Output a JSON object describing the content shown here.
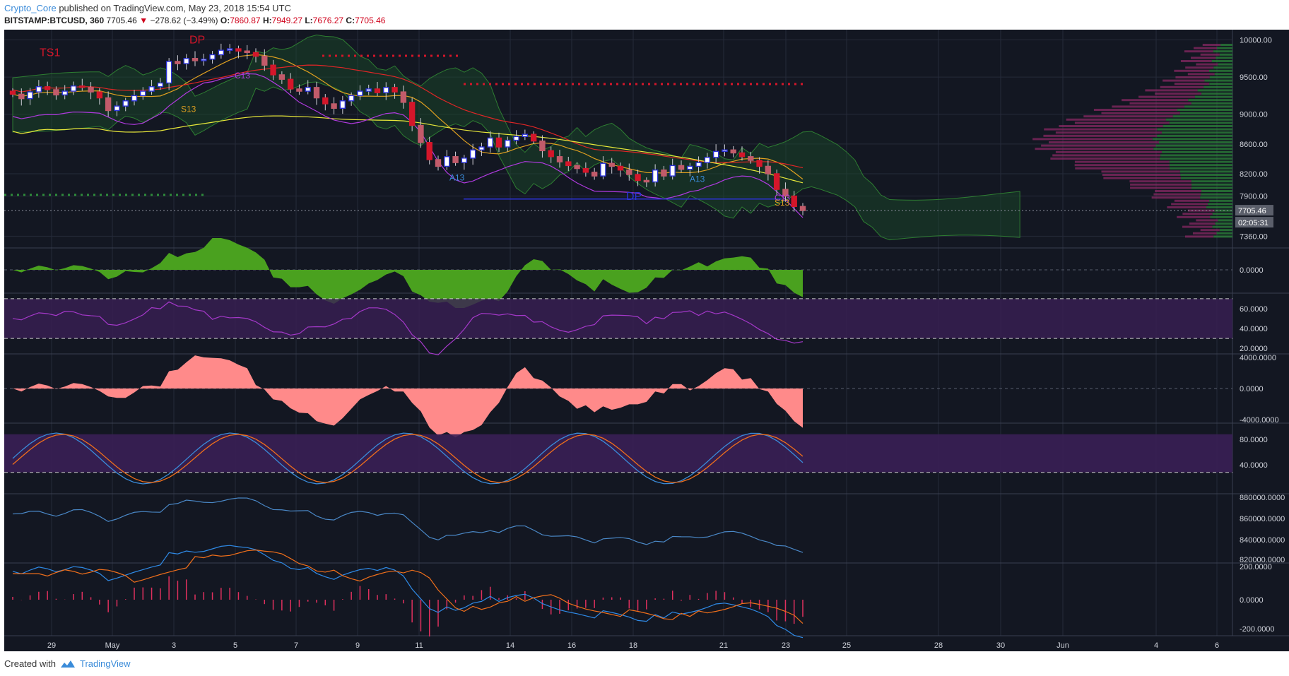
{
  "header": {
    "author": "Crypto_Core",
    "published_text": "published on TradingView.com, May 23, 2018 15:54 UTC"
  },
  "symbol_line": {
    "symbol": "BITSTAMP:BTCUSD, 360",
    "last": "7705.46",
    "change_arrow": "▼",
    "change": "−278.62 (−3.49%)",
    "o_label": "O:",
    "o": "7860.87",
    "h_label": "H:",
    "h": "7949.27",
    "l_label": "L:",
    "l": "7676.27",
    "c_label": "C:",
    "c": "7705.46"
  },
  "footer": {
    "created_with": "Created with",
    "brand": "TradingView"
  },
  "colors": {
    "bg": "#131722",
    "grid": "#262b3a",
    "up": "#2c33d8",
    "down": "#d4162a",
    "cloud_up": "#1b4d2b",
    "cloud_down": "#4a1f2b",
    "axis_text": "#d1d4dc",
    "ao": "#4aa11f",
    "rsi": "#a438c9",
    "cci_fill": "#ff8a8a",
    "stoch_k": "#3a8bd9",
    "stoch_d": "#f06f1b",
    "obv": "#4a88c7",
    "macd": "#2f8ae6",
    "signal": "#f06f1b",
    "hist": "#e0305e"
  },
  "chart_data": {
    "type": "candlestick",
    "price_axis": {
      "ticks": [
        "10000.00",
        "9500.00",
        "9000.00",
        "8600.00",
        "8200.00",
        "7900.00",
        "7360.00"
      ],
      "last_price": "7705.46",
      "countdown": "02:05:31",
      "range": [
        7250,
        10080
      ]
    },
    "x_axis": {
      "ticks": [
        "29",
        "May",
        "3",
        "5",
        "7",
        "9",
        "11",
        "14",
        "16",
        "18",
        "21",
        "23",
        "25",
        "28",
        "30",
        "Jun",
        "4",
        "6"
      ]
    },
    "price_series": [
      9270,
      9210,
      9300,
      9370,
      9330,
      9260,
      9310,
      9380,
      9360,
      9300,
      9220,
      9050,
      9110,
      9180,
      9250,
      9310,
      9370,
      9420,
      9710,
      9680,
      9750,
      9720,
      9740,
      9800,
      9860,
      9880,
      9850,
      9830,
      9780,
      9660,
      9530,
      9470,
      9340,
      9310,
      9360,
      9220,
      9140,
      9080,
      9180,
      9250,
      9310,
      9340,
      9290,
      9360,
      9300,
      9160,
      8850,
      8620,
      8390,
      8300,
      8430,
      8350,
      8410,
      8520,
      8560,
      8680,
      8560,
      8650,
      8700,
      8730,
      8640,
      8510,
      8430,
      8360,
      8310,
      8270,
      8220,
      8170,
      8340,
      8300,
      8250,
      8190,
      8110,
      8090,
      8250,
      8170,
      8310,
      8260,
      8300,
      8350,
      8420,
      8500,
      8520,
      8480,
      8430,
      8380,
      8300,
      8200,
      7990,
      7900,
      7760,
      7705
    ],
    "panels": [
      {
        "name": "ao",
        "ticks": [
          "0.0000"
        ]
      },
      {
        "name": "rsi",
        "ticks": [
          "60.0000",
          "40.0000",
          "20.0000"
        ]
      },
      {
        "name": "cci",
        "ticks": [
          "4000.0000",
          "0.0000",
          "-4000.0000"
        ]
      },
      {
        "name": "stoch",
        "ticks": [
          "80.0000",
          "40.0000"
        ]
      },
      {
        "name": "obv",
        "ticks": [
          "880000.0000",
          "860000.0000",
          "840000.0000",
          "820000.0000"
        ]
      },
      {
        "name": "macd",
        "ticks": [
          "200.0000",
          "0.0000",
          "-200.0000"
        ]
      }
    ],
    "annotations": [
      "TS1",
      "DP",
      "C13",
      "S13",
      "A13",
      "A13",
      "DP",
      "C13",
      "S13"
    ]
  }
}
